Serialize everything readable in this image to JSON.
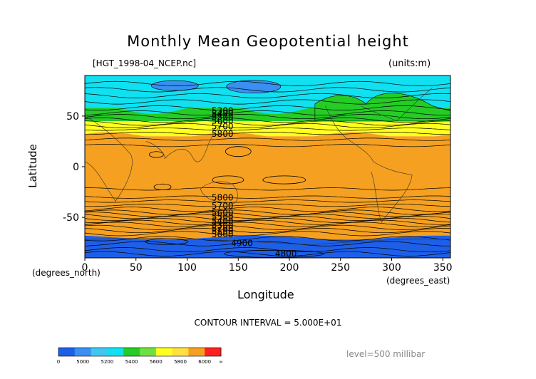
{
  "chart_data": {
    "type": "contour",
    "title": "Monthly Mean Geopotential height",
    "subtitle": "[HGT_1998-04_NCEP.nc]",
    "units_label": "(units:m)",
    "xlabel": "Longitude",
    "ylabel": "Latitude",
    "x_unit_label": "(degrees_north)",
    "y_unit_label": "(degrees_east)",
    "xlim": [
      0,
      357.5
    ],
    "ylim": [
      -90,
      90
    ],
    "x_ticks": [
      0,
      50,
      100,
      150,
      200,
      250,
      300,
      350
    ],
    "y_ticks": [
      -50,
      0,
      50
    ],
    "contour_interval_label": "CONTOUR INTERVAL = 5.000E+01",
    "level_label": "level=500 millibar",
    "contour_labels": [
      {
        "text": "5300",
        "x": 124,
        "y": 56
      },
      {
        "text": "5400",
        "x": 124,
        "y": 53
      },
      {
        "text": "5500",
        "x": 124,
        "y": 49.5
      },
      {
        "text": "5600",
        "x": 124,
        "y": 46
      },
      {
        "text": "5700",
        "x": 124,
        "y": 40.5
      },
      {
        "text": "5800",
        "x": 124,
        "y": 33
      },
      {
        "text": "5800",
        "x": 124,
        "y": -30
      },
      {
        "text": "5700",
        "x": 124,
        "y": -38
      },
      {
        "text": "5600",
        "x": 124,
        "y": -45
      },
      {
        "text": "5500",
        "x": 124,
        "y": -49
      },
      {
        "text": "5400",
        "x": 124,
        "y": -53
      },
      {
        "text": "5300",
        "x": 124,
        "y": -57
      },
      {
        "text": "5200",
        "x": 124,
        "y": -60
      },
      {
        "text": "5100",
        "x": 124,
        "y": -63
      },
      {
        "text": "5000",
        "x": 124,
        "y": -66
      },
      {
        "text": "4900",
        "x": 143,
        "y": -75
      },
      {
        "text": "4800",
        "x": 186,
        "y": -85
      }
    ],
    "colorbar": {
      "boundaries": [
        0,
        5000,
        5200,
        5400,
        5600,
        5800,
        6000,
        "∞"
      ],
      "colors": [
        "#1e5fe8",
        "#3a8ff0",
        "#3cc8f0",
        "#10e0f0",
        "#25cc25",
        "#70e040",
        "#ffff20",
        "#ffe040",
        "#f5a020",
        "#ff2020"
      ]
    },
    "band_colors": {
      "below_5000": "#1e5fe8",
      "5000_5200": "#3a8ff0",
      "5200_5400": "#10e0f0",
      "5400_5600": "#25cc25",
      "5600_5800": "#ffff20",
      "above_5800": "#f5a020"
    }
  }
}
